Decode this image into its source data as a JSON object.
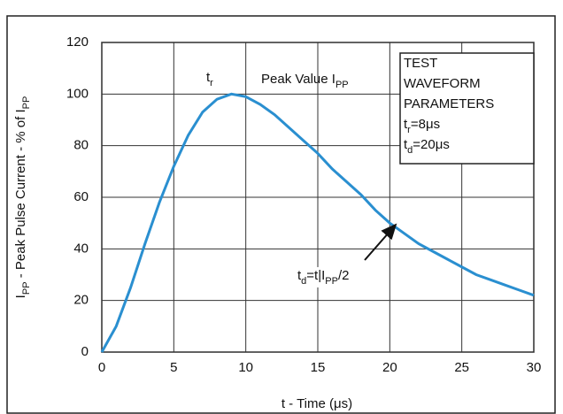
{
  "chart_data": {
    "type": "line",
    "x_label": [
      {
        "text": "t - Time (μs)"
      }
    ],
    "y_label": [
      {
        "text": "I"
      },
      {
        "sub": "PP"
      },
      {
        "text": " - Peak Pulse Current - % of I"
      },
      {
        "sub": "PP"
      }
    ],
    "x": [
      0,
      1,
      2,
      3,
      4,
      5,
      6,
      7,
      8,
      9,
      10,
      11,
      12,
      13,
      14,
      15,
      16,
      17,
      18,
      19,
      20,
      21,
      22,
      23,
      24,
      25,
      26,
      27,
      28,
      29,
      30
    ],
    "series": [
      {
        "color": "#2a8fd0",
        "values": [
          0,
          10,
          25,
          42,
          58,
          72,
          84,
          93,
          98,
          100,
          99,
          96,
          92,
          87,
          82,
          77,
          71,
          66,
          61,
          55,
          50,
          46,
          42,
          39,
          36,
          33,
          30,
          28,
          26,
          24,
          22
        ]
      }
    ],
    "xlim": [
      0,
      30
    ],
    "xticks": [
      0,
      5,
      10,
      15,
      20,
      25,
      30
    ],
    "ylim": [
      0,
      120
    ],
    "yticks": [
      0,
      20,
      40,
      60,
      80,
      100,
      120
    ],
    "grid": true,
    "annotations": {
      "rise": [
        {
          "text": "t"
        },
        {
          "sub": "r"
        }
      ],
      "peak": [
        {
          "text": "Peak Value I"
        },
        {
          "sub": "PP"
        }
      ],
      "decay": [
        {
          "text": "t"
        },
        {
          "sub": "d"
        },
        {
          "text": "=t|I"
        },
        {
          "sub": "PP"
        },
        {
          "text": "/2"
        }
      ]
    },
    "parameters_box": [
      [
        {
          "text": "TEST"
        }
      ],
      [
        {
          "text": "WAVEFORM"
        }
      ],
      [
        {
          "text": "PARAMETERS"
        }
      ],
      [
        {
          "text": "t"
        },
        {
          "sub": "r"
        },
        {
          "text": "=8μs"
        }
      ],
      [
        {
          "text": "t"
        },
        {
          "sub": "d"
        },
        {
          "text": "=20μs"
        }
      ]
    ]
  }
}
